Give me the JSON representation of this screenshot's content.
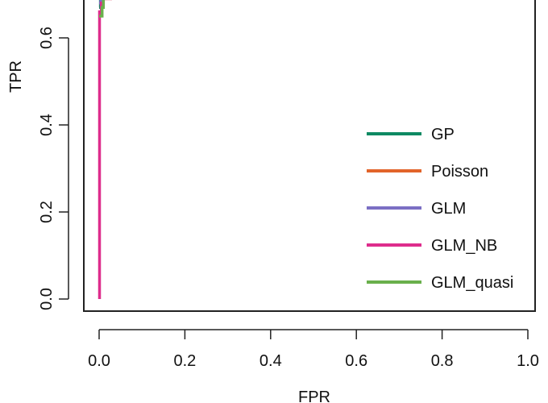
{
  "chart_data": {
    "type": "line",
    "xlabel": "FPR",
    "ylabel": "TPR",
    "xlim": [
      0,
      1
    ],
    "ylim_visible": [
      0,
      0.7
    ],
    "x_ticks": [
      "0.0",
      "0.2",
      "0.4",
      "0.6",
      "0.8",
      "1.0"
    ],
    "y_ticks": [
      "0.0",
      "0.2",
      "0.4",
      "0.6"
    ],
    "legend_position": "right",
    "series": [
      {
        "name": "GP",
        "color": "#0e8a63",
        "points": [
          [
            0,
            0.67
          ],
          [
            0.003,
            0.67
          ],
          [
            0.003,
            0.69
          ],
          [
            0.005,
            0.69
          ]
        ]
      },
      {
        "name": "Poisson",
        "color": "#e2642a",
        "points": [
          [
            0,
            0.68
          ],
          [
            0.005,
            0.68
          ],
          [
            0.005,
            0.69
          ],
          [
            0.03,
            0.69
          ]
        ]
      },
      {
        "name": "GLM",
        "color": "#7b6fc4",
        "points": [
          [
            0,
            0.68
          ],
          [
            0.004,
            0.68
          ],
          [
            0.004,
            0.69
          ],
          [
            0.01,
            0.69
          ]
        ]
      },
      {
        "name": "GLM_NB",
        "color": "#de2d8c",
        "points": [
          [
            0.001,
            0.0
          ],
          [
            0.001,
            0.66
          ],
          [
            0.005,
            0.66
          ],
          [
            0.005,
            0.68
          ],
          [
            0.01,
            0.68
          ],
          [
            0.01,
            0.69
          ],
          [
            0.03,
            0.69
          ]
        ]
      },
      {
        "name": "GLM_quasi",
        "color": "#6ab04c",
        "points": [
          [
            0,
            0.65
          ],
          [
            0.007,
            0.65
          ],
          [
            0.007,
            0.67
          ],
          [
            0.01,
            0.67
          ],
          [
            0.01,
            0.69
          ]
        ]
      }
    ]
  }
}
